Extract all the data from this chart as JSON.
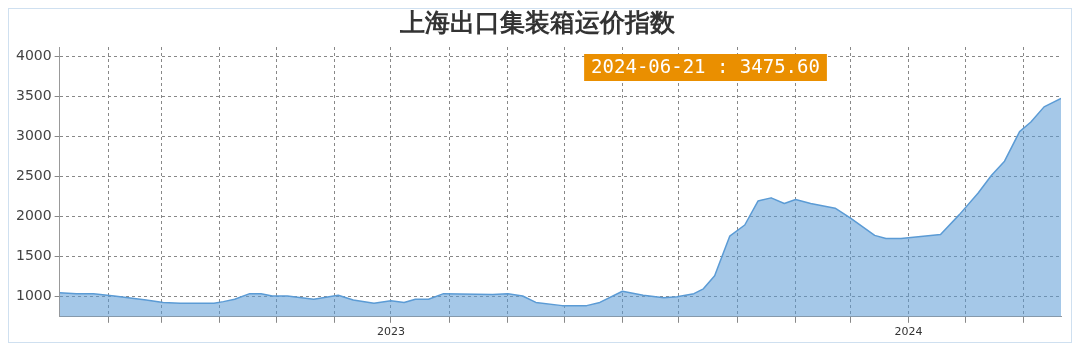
{
  "chart_data": {
    "type": "area",
    "title": "上海出口集装箱运价指数",
    "x": [
      "2023-01-06",
      "2023-01-15",
      "2023-01-24",
      "2023-02-04",
      "2023-02-21",
      "2023-03-02",
      "2023-03-11",
      "2023-03-29",
      "2023-04-03",
      "2023-04-09",
      "2023-04-17",
      "2023-04-23",
      "2023-04-29",
      "2023-05-07",
      "2023-05-21",
      "2023-06-03",
      "2023-06-11",
      "2023-06-22",
      "2023-07-01",
      "2023-07-08",
      "2023-07-14",
      "2023-07-21",
      "2023-07-29",
      "2023-08-24",
      "2023-09-01",
      "2023-09-09",
      "2023-09-16",
      "2023-09-30",
      "2023-10-13",
      "2023-10-20",
      "2023-11-01",
      "2023-11-12",
      "2023-11-23",
      "2023-11-30",
      "2023-12-09",
      "2023-12-14",
      "2023-12-20",
      "2023-12-28",
      "2024-01-05",
      "2024-01-12",
      "2024-01-19",
      "2024-01-26",
      "2024-02-01",
      "2024-02-09",
      "2024-02-22",
      "2024-03-01",
      "2024-03-14",
      "2024-03-20",
      "2024-03-28",
      "2024-04-18",
      "2024-04-28",
      "2024-05-08",
      "2024-05-15",
      "2024-05-22",
      "2024-05-30",
      "2024-06-05",
      "2024-06-12",
      "2024-06-21"
    ],
    "series": [
      {
        "color": "#5b9bd5",
        "values": [
          1040,
          1030,
          1030,
          1000,
          950,
          920,
          910,
          910,
          930,
          960,
          1030,
          1030,
          1000,
          1000,
          960,
          1010,
          950,
          910,
          940,
          920,
          960,
          960,
          1030,
          1020,
          1030,
          1000,
          920,
          880,
          880,
          920,
          1060,
          1010,
          980,
          990,
          1030,
          1090,
          1255,
          1750,
          1890,
          2190,
          2230,
          2160,
          2210,
          2160,
          2100,
          1980,
          1760,
          1720,
          1720,
          1770,
          2020,
          2290,
          2510,
          2690,
          3060,
          3180,
          3370,
          3475.6
        ]
      }
    ],
    "xlim": [
      "2023-01-06",
      "2024-06-21"
    ],
    "xticks": [
      {
        "value": "2023-02-01",
        "label": null
      },
      {
        "value": "2023-03-01",
        "label": null
      },
      {
        "value": "2023-04-01",
        "label": null
      },
      {
        "value": "2023-05-01",
        "label": null
      },
      {
        "value": "2023-06-01",
        "label": null
      },
      {
        "value": "2023-07-01",
        "label": "2023"
      },
      {
        "value": "2023-08-01",
        "label": null
      },
      {
        "value": "2023-09-01",
        "label": null
      },
      {
        "value": "2023-10-01",
        "label": null
      },
      {
        "value": "2023-11-01",
        "label": null
      },
      {
        "value": "2023-12-01",
        "label": null
      },
      {
        "value": "2024-01-01",
        "label": null
      },
      {
        "value": "2024-02-01",
        "label": null
      },
      {
        "value": "2024-03-01",
        "label": null
      },
      {
        "value": "2024-04-01",
        "label": "2024"
      },
      {
        "value": "2024-05-01",
        "label": null
      },
      {
        "value": "2024-06-01",
        "label": null
      }
    ],
    "ylim": [
      740,
      4120
    ],
    "yticks": [
      1000,
      1500,
      2000,
      2500,
      3000,
      3500,
      4000
    ],
    "grid": true,
    "legend": false,
    "annotations": [
      "2024-06-21 : 3475.60"
    ]
  }
}
